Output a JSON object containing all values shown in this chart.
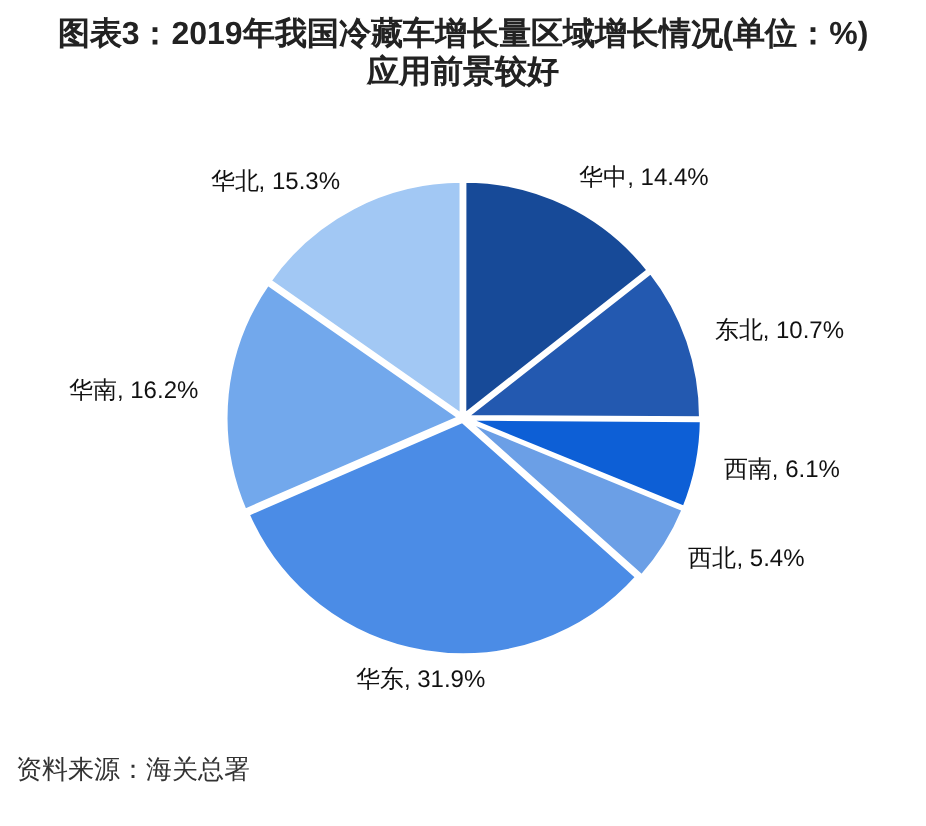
{
  "chart_data": {
    "type": "pie",
    "title": "图表3：2019年我国冷藏车增长量区域增长情况(单位：%)",
    "subtitle": "应用前景较好",
    "categories": [
      "华中",
      "东北",
      "西南",
      "西北",
      "华东",
      "华南",
      "华北"
    ],
    "values": [
      14.4,
      10.7,
      6.1,
      5.4,
      31.9,
      16.2,
      15.3
    ],
    "colors": [
      "#174a98",
      "#2359b0",
      "#0d5fd6",
      "#6b9fe6",
      "#4b8ce6",
      "#72a8ec",
      "#a2c8f4"
    ],
    "value_labels": [
      "14.4%",
      "10.7%",
      "6.1%",
      "5.4%",
      "31.9%",
      "16.2%",
      "15.3%"
    ],
    "annotations": [
      "资料来源：海关总署"
    ]
  }
}
